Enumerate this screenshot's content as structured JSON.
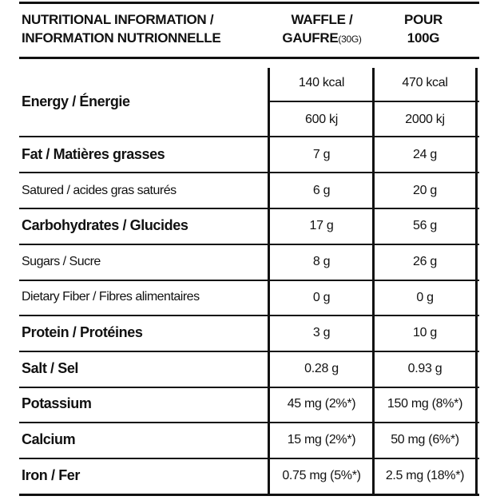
{
  "header": {
    "title_line1": "NUTRITIONAL INFORMATION /",
    "title_line2": "INFORMATION NUTRIONNELLE",
    "waffle_line1": "WAFFLE /",
    "waffle_line2": "GAUFRE",
    "waffle_serving": "(30G)",
    "pour_line1": "POUR",
    "pour_line2": "100G"
  },
  "energy": {
    "label": "Energy / Énergie",
    "waffle_kcal": "140 kcal",
    "per100_kcal": "470 kcal",
    "waffle_kj": "600 kj",
    "per100_kj": "2000 kj"
  },
  "rows": [
    {
      "label": "Fat / Matières grasses",
      "waffle": "7 g",
      "per100": "24 g",
      "bold": true
    },
    {
      "label": "Satured / acides gras saturés",
      "waffle": "6 g",
      "per100": "20 g",
      "bold": false
    },
    {
      "label": "Carbohydrates / Glucides",
      "waffle": "17 g",
      "per100": "56 g",
      "bold": true
    },
    {
      "label": "Sugars / Sucre",
      "waffle": "8 g",
      "per100": "26 g",
      "bold": false
    },
    {
      "label": "Dietary Fiber / Fibres alimentaires",
      "waffle": "0 g",
      "per100": "0 g",
      "bold": false
    },
    {
      "label": "Protein / Protéines",
      "waffle": "3 g",
      "per100": "10 g",
      "bold": true
    },
    {
      "label": "Salt / Sel",
      "waffle": "0.28 g",
      "per100": "0.93 g",
      "bold": true
    },
    {
      "label": "Potassium",
      "waffle": "45 mg (2%*)",
      "per100": "150 mg (8%*)",
      "bold": true
    },
    {
      "label": "Calcium",
      "waffle": "15 mg (2%*)",
      "per100": "50 mg (6%*)",
      "bold": true
    },
    {
      "label": "Iron / Fer",
      "waffle": "0.75 mg (5%*)",
      "per100": "2.5 mg (18%*)",
      "bold": true
    }
  ]
}
